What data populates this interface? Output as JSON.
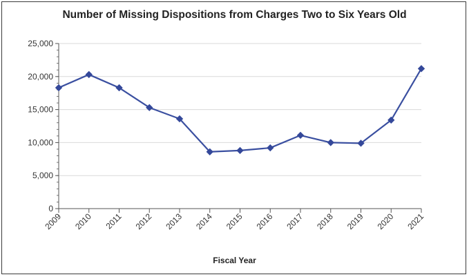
{
  "chart_data": {
    "type": "line",
    "title": "Number of Missing Dispositions from Charges Two to Six Years Old",
    "xlabel": "Fiscal Year",
    "ylabel": "",
    "categories": [
      "2009",
      "2010",
      "2011",
      "2012",
      "2013",
      "2014",
      "2015",
      "2016",
      "2017",
      "2018",
      "2019",
      "2020",
      "2021"
    ],
    "series": [
      {
        "values": [
          18300,
          20300,
          18300,
          15300,
          13600,
          8600,
          8800,
          9200,
          11100,
          10000,
          9900,
          13400,
          21200
        ]
      }
    ],
    "ylim": [
      0,
      25000
    ],
    "yticks": [
      "0",
      "5,000",
      "10,000",
      "15,000",
      "20,000",
      "25,000"
    ],
    "grid": true,
    "legend": "none",
    "colors": {
      "line": "#3a4fa0",
      "marker": "#34489a",
      "grid": "#d9d9d9",
      "axis": "#555555"
    }
  }
}
